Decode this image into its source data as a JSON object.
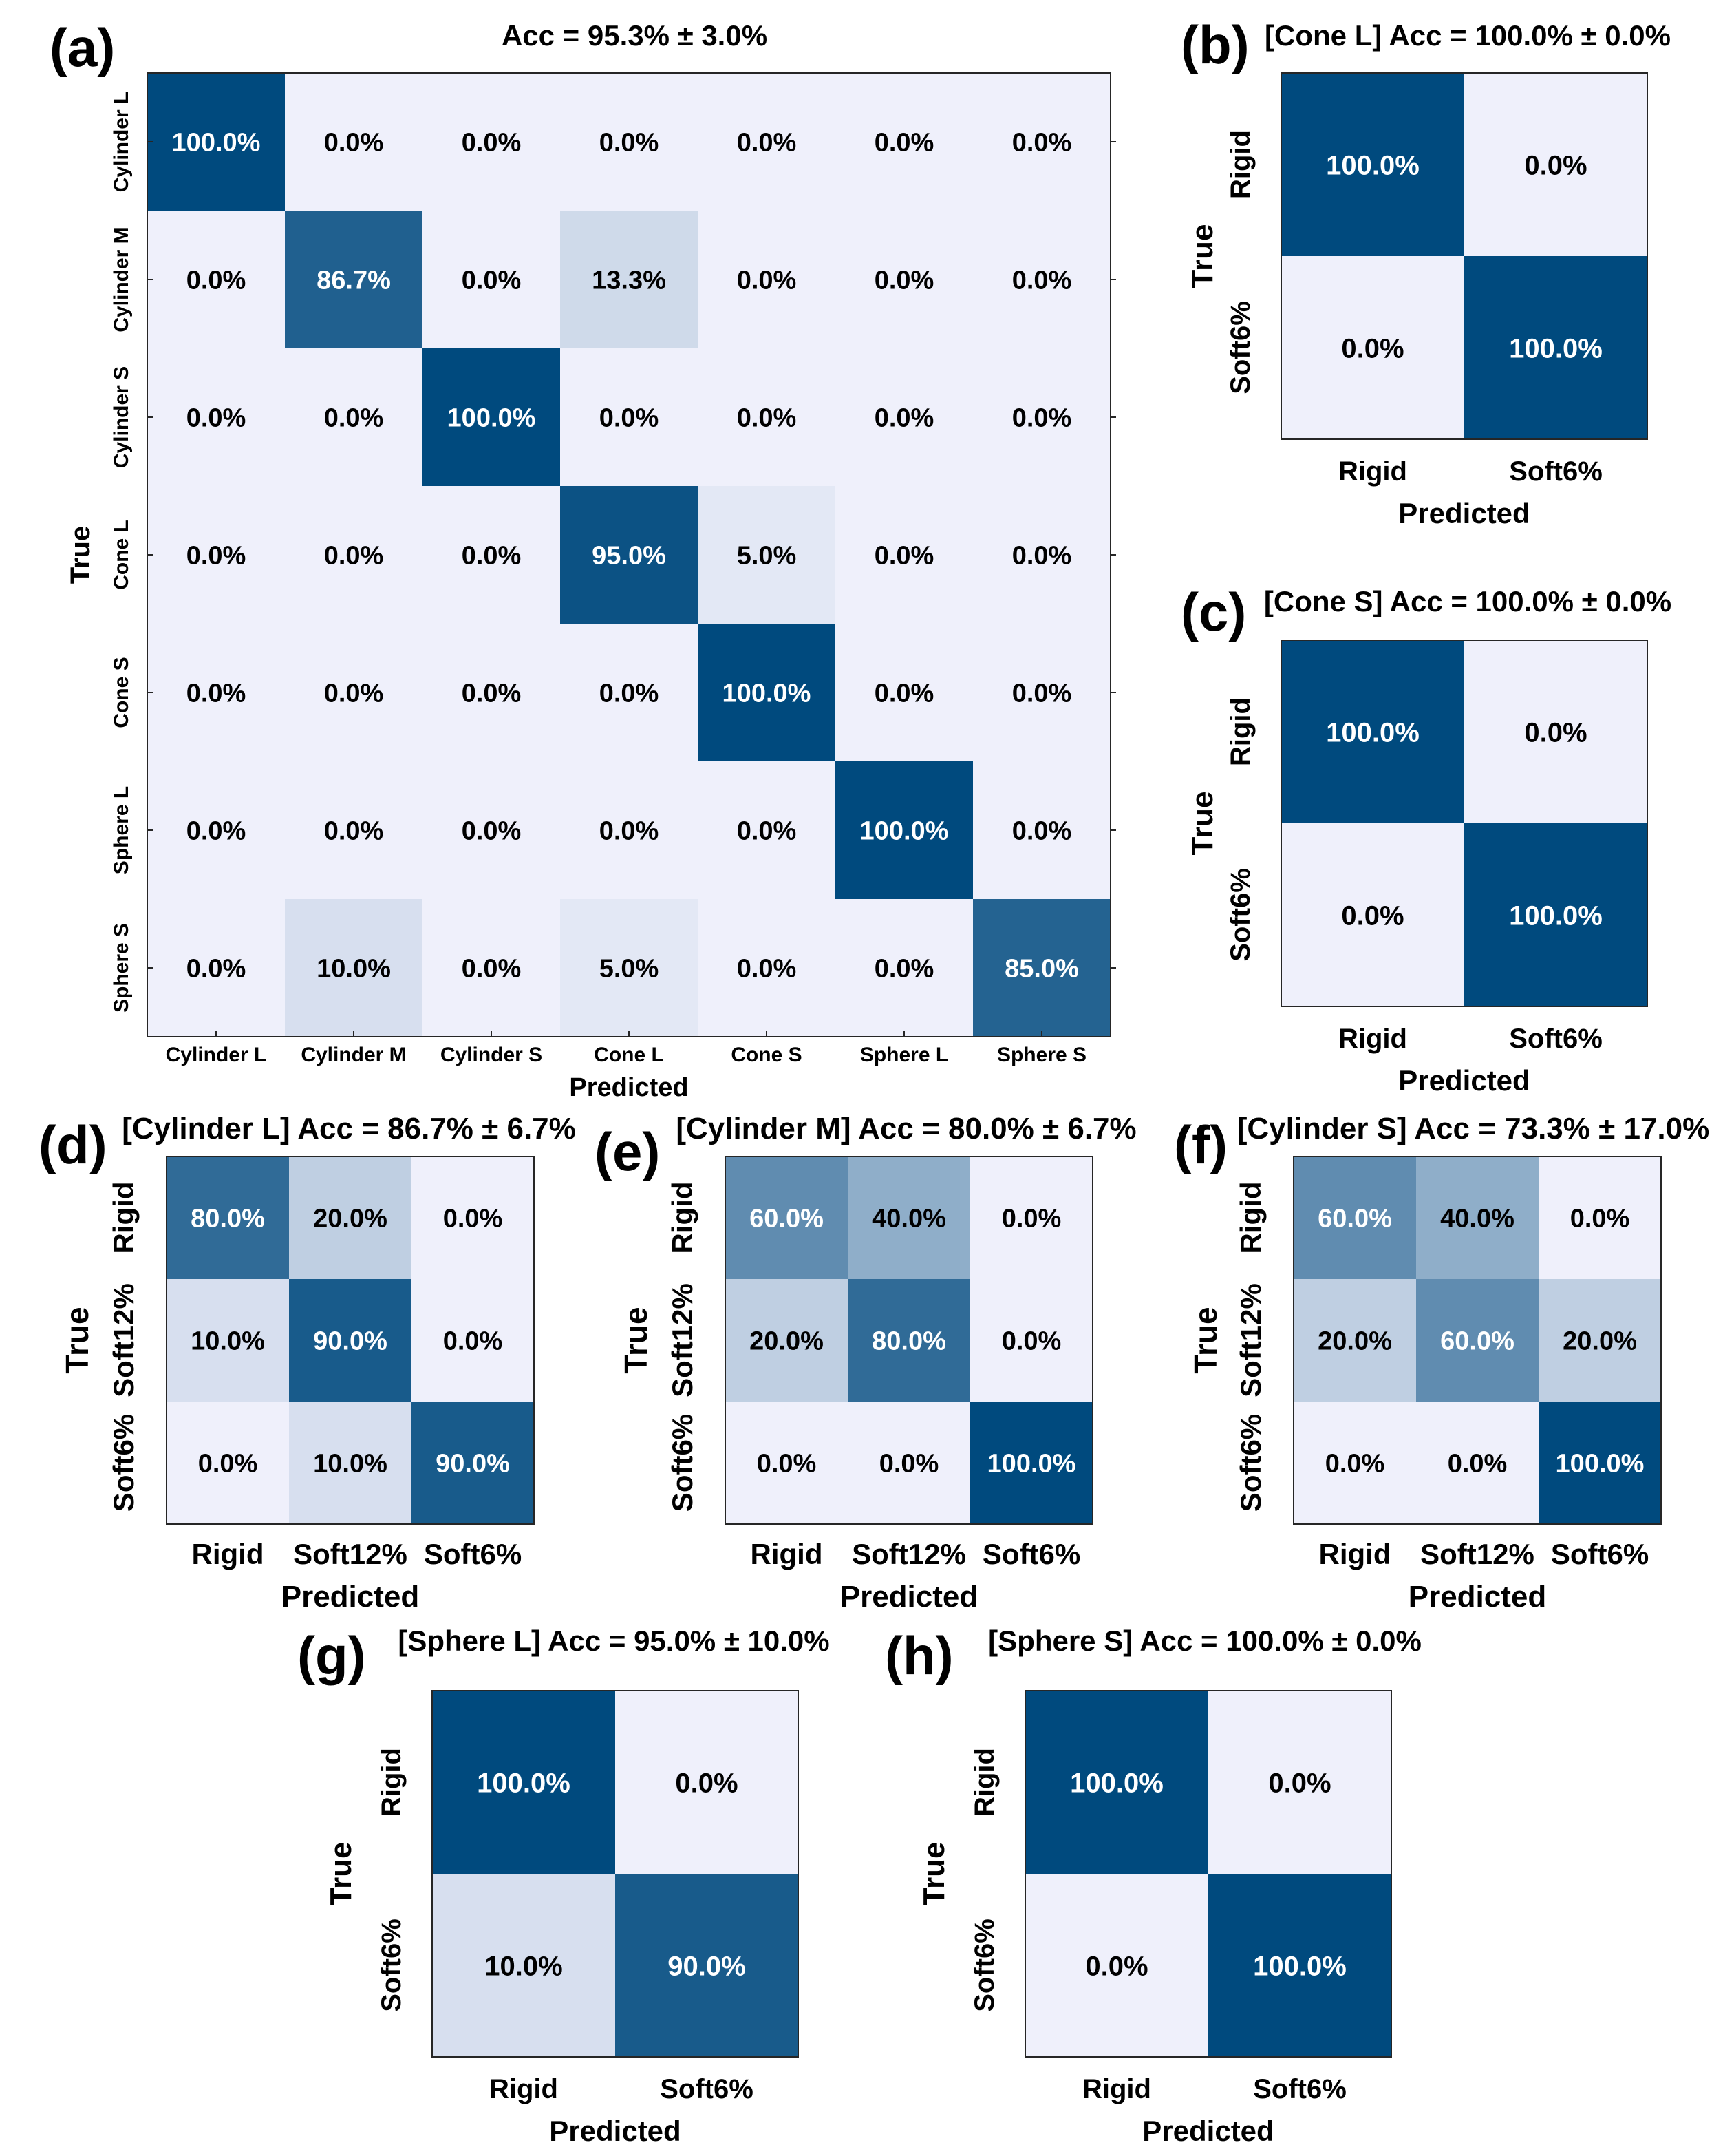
{
  "figure": {
    "axis_xlabel": "Predicted",
    "axis_ylabel": "True"
  },
  "colors": {
    "low": "#eff0fb",
    "high": "#004a7e",
    "text_dark": "#000000",
    "text_light": "#ffffff"
  },
  "chart_data": [
    {
      "panel": "(a)",
      "type": "heatmap",
      "title": "Acc = 95.3% ± 3.0%",
      "xlabel": "Predicted",
      "ylabel": "True",
      "x_categories": [
        "Cylinder L",
        "Cylinder M",
        "Cylinder S",
        "Cone L",
        "Cone S",
        "Sphere L",
        "Sphere S"
      ],
      "y_categories": [
        "Cylinder L",
        "Cylinder M",
        "Cylinder S",
        "Cone L",
        "Cone S",
        "Sphere L",
        "Sphere S"
      ],
      "values": [
        [
          100.0,
          0.0,
          0.0,
          0.0,
          0.0,
          0.0,
          0.0
        ],
        [
          0.0,
          86.7,
          0.0,
          13.3,
          0.0,
          0.0,
          0.0
        ],
        [
          0.0,
          0.0,
          100.0,
          0.0,
          0.0,
          0.0,
          0.0
        ],
        [
          0.0,
          0.0,
          0.0,
          95.0,
          5.0,
          0.0,
          0.0
        ],
        [
          0.0,
          0.0,
          0.0,
          0.0,
          100.0,
          0.0,
          0.0
        ],
        [
          0.0,
          0.0,
          0.0,
          0.0,
          0.0,
          100.0,
          0.0
        ],
        [
          0.0,
          10.0,
          0.0,
          5.0,
          0.0,
          0.0,
          85.0
        ]
      ],
      "unit": "%",
      "color_range": [
        0,
        100
      ]
    },
    {
      "panel": "(b)",
      "type": "heatmap",
      "title": "[Cone L] Acc = 100.0% ± 0.0%",
      "xlabel": "Predicted",
      "ylabel": "True",
      "x_categories": [
        "Rigid",
        "Soft6%"
      ],
      "y_categories": [
        "Rigid",
        "Soft6%"
      ],
      "values": [
        [
          100.0,
          0.0
        ],
        [
          0.0,
          100.0
        ]
      ],
      "unit": "%",
      "color_range": [
        0,
        100
      ]
    },
    {
      "panel": "(c)",
      "type": "heatmap",
      "title": "[Cone S] Acc = 100.0% ± 0.0%",
      "xlabel": "Predicted",
      "ylabel": "True",
      "x_categories": [
        "Rigid",
        "Soft6%"
      ],
      "y_categories": [
        "Rigid",
        "Soft6%"
      ],
      "values": [
        [
          100.0,
          0.0
        ],
        [
          0.0,
          100.0
        ]
      ],
      "unit": "%",
      "color_range": [
        0,
        100
      ]
    },
    {
      "panel": "(d)",
      "type": "heatmap",
      "title": "[Cylinder L] Acc = 86.7% ± 6.7%",
      "xlabel": "Predicted",
      "ylabel": "True",
      "x_categories": [
        "Rigid",
        "Soft12%",
        "Soft6%"
      ],
      "y_categories": [
        "Rigid",
        "Soft12%",
        "Soft6%"
      ],
      "values": [
        [
          80.0,
          20.0,
          0.0
        ],
        [
          10.0,
          90.0,
          0.0
        ],
        [
          0.0,
          10.0,
          90.0
        ]
      ],
      "unit": "%",
      "color_range": [
        0,
        100
      ]
    },
    {
      "panel": "(e)",
      "type": "heatmap",
      "title": "[Cylinder M] Acc = 80.0% ± 6.7%",
      "xlabel": "Predicted",
      "ylabel": "True",
      "x_categories": [
        "Rigid",
        "Soft12%",
        "Soft6%"
      ],
      "y_categories": [
        "Rigid",
        "Soft12%",
        "Soft6%"
      ],
      "values": [
        [
          60.0,
          40.0,
          0.0
        ],
        [
          20.0,
          80.0,
          0.0
        ],
        [
          0.0,
          0.0,
          100.0
        ]
      ],
      "unit": "%",
      "color_range": [
        0,
        100
      ]
    },
    {
      "panel": "(f)",
      "type": "heatmap",
      "title": "[Cylinder S] Acc = 73.3% ± 17.0%",
      "xlabel": "Predicted",
      "ylabel": "True",
      "x_categories": [
        "Rigid",
        "Soft12%",
        "Soft6%"
      ],
      "y_categories": [
        "Rigid",
        "Soft12%",
        "Soft6%"
      ],
      "values": [
        [
          60.0,
          40.0,
          0.0
        ],
        [
          20.0,
          60.0,
          20.0
        ],
        [
          0.0,
          0.0,
          100.0
        ]
      ],
      "unit": "%",
      "color_range": [
        0,
        100
      ]
    },
    {
      "panel": "(g)",
      "type": "heatmap",
      "title": "[Sphere L] Acc = 95.0% ± 10.0%",
      "xlabel": "Predicted",
      "ylabel": "True",
      "x_categories": [
        "Rigid",
        "Soft6%"
      ],
      "y_categories": [
        "Rigid",
        "Soft6%"
      ],
      "values": [
        [
          100.0,
          0.0
        ],
        [
          10.0,
          90.0
        ]
      ],
      "unit": "%",
      "color_range": [
        0,
        100
      ]
    },
    {
      "panel": "(h)",
      "type": "heatmap",
      "title": "[Sphere S] Acc = 100.0% ± 0.0%",
      "xlabel": "Predicted",
      "ylabel": "True",
      "x_categories": [
        "Rigid",
        "Soft6%"
      ],
      "y_categories": [
        "Rigid",
        "Soft6%"
      ],
      "values": [
        [
          100.0,
          0.0
        ],
        [
          0.0,
          100.0
        ]
      ],
      "unit": "%",
      "color_range": [
        0,
        100
      ]
    }
  ]
}
